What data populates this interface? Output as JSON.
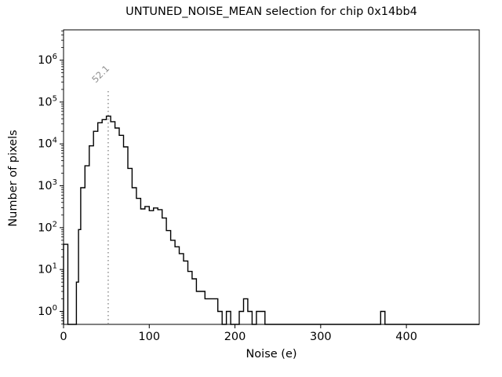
{
  "figure": {
    "title": "UNTUNED_NOISE_MEAN selection for chip 0x14bb4",
    "xlabel": "Noise (e)",
    "ylabel": "Number of pixels",
    "background": "#ffffff",
    "line_color": "#000000",
    "spine_color": "#000000"
  },
  "axes": {
    "x_ticks": [
      0,
      100,
      200,
      300,
      400
    ],
    "y_tick_base": "10",
    "y_tick_exponents": [
      0,
      1,
      2,
      3,
      4,
      5,
      6
    ],
    "xlim": [
      0,
      485
    ],
    "ylim_log10": [
      -0.31,
      6.724
    ]
  },
  "annotation": {
    "label": "52.1",
    "x": 52.1,
    "color": "#8f8f8f",
    "line_style": "dotted"
  },
  "chart_data": {
    "type": "bar",
    "subtype": "step-histogram",
    "title": "UNTUNED_NOISE_MEAN selection for chip 0x14bb4",
    "xlabel": "Noise (e)",
    "ylabel": "Number of pixels",
    "yscale": "log",
    "xlim": [
      0,
      485
    ],
    "ylim": [
      0.49,
      5300000
    ],
    "legend": "none",
    "grid": false,
    "mean_marker": {
      "x": 52.1,
      "label": "52.1"
    },
    "steps_note": "pairs of [bin_left_edge, count]; count holds until next edge; histogram outline only",
    "steps": [
      [
        0,
        40
      ],
      [
        5,
        0
      ],
      [
        15,
        5
      ],
      [
        17.5,
        90
      ],
      [
        20,
        900
      ],
      [
        25,
        3000
      ],
      [
        30,
        9000
      ],
      [
        35,
        20000
      ],
      [
        40,
        32000
      ],
      [
        45,
        38000
      ],
      [
        50,
        46000
      ],
      [
        55,
        34000
      ],
      [
        60,
        24000
      ],
      [
        65,
        16000
      ],
      [
        70,
        8500
      ],
      [
        75,
        2600
      ],
      [
        80,
        900
      ],
      [
        85,
        500
      ],
      [
        90,
        280
      ],
      [
        95,
        320
      ],
      [
        100,
        255
      ],
      [
        105,
        295
      ],
      [
        110,
        270
      ],
      [
        115,
        170
      ],
      [
        120,
        85
      ],
      [
        125,
        50
      ],
      [
        130,
        35
      ],
      [
        135,
        24
      ],
      [
        140,
        16
      ],
      [
        145,
        9
      ],
      [
        150,
        6
      ],
      [
        155,
        3
      ],
      [
        165,
        2
      ],
      [
        180,
        1
      ],
      [
        185,
        0
      ],
      [
        190,
        1
      ],
      [
        195,
        0
      ],
      [
        205,
        1
      ],
      [
        210,
        2
      ],
      [
        215,
        1
      ],
      [
        220,
        0
      ],
      [
        225,
        1
      ],
      [
        235,
        0
      ],
      [
        370,
        1
      ],
      [
        375,
        0
      ]
    ],
    "x_end": 485
  }
}
